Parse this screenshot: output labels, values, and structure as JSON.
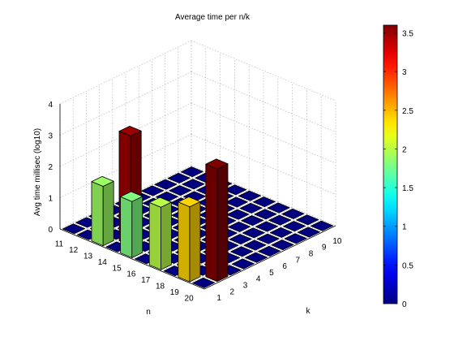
{
  "chart_data": {
    "type": "bar3",
    "title": "Average time per n/k",
    "xlabel": "n",
    "ylabel": "k",
    "zlabel": "Avg time millisec (log10)",
    "n_values": [
      "11",
      "12",
      "13",
      "14",
      "15",
      "16",
      "17",
      "18",
      "19",
      "20"
    ],
    "k_values": [
      "1",
      "2",
      "3",
      "4",
      "5",
      "6",
      "7",
      "8",
      "9",
      "10"
    ],
    "z_ticks": [
      "0",
      "1",
      "2",
      "3",
      "4"
    ],
    "zlim": [
      0,
      4
    ],
    "bars": [
      {
        "n": 13,
        "k": 1,
        "value": 1.9
      },
      {
        "n": 14,
        "k": 2,
        "value": 3.5
      },
      {
        "n": 15,
        "k": 1,
        "value": 1.8
      },
      {
        "n": 17,
        "k": 1,
        "value": 2.0
      },
      {
        "n": 19,
        "k": 1,
        "value": 2.4
      },
      {
        "n": 20,
        "k": 2,
        "value": 3.6
      }
    ],
    "colorbar": {
      "min": 0,
      "max": 3.6,
      "ticks": [
        "0",
        "0.5",
        "1",
        "1.5",
        "2",
        "2.5",
        "3",
        "3.5"
      ],
      "colormap": "jet"
    },
    "grid": true
  }
}
